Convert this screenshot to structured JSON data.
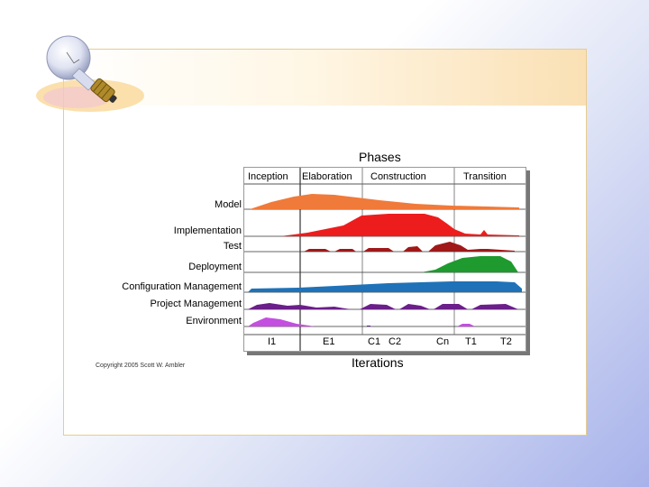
{
  "diagram": {
    "title": "Phases",
    "axis_title": "Iterations",
    "copyright": "Copyright 2005 Scott W. Ambler",
    "phases": [
      "Inception",
      "Elaboration",
      "Construction",
      "Transition"
    ],
    "disciplines": [
      "Model",
      "Implementation",
      "Test",
      "Deployment",
      "Configuration Management",
      "Project Management",
      "Environment"
    ],
    "iterations": [
      "I1",
      "E1",
      "C1",
      "C2",
      "Cn",
      "T1",
      "T2"
    ]
  },
  "colors": {
    "model": "#f07a3a",
    "implementation": "#ee1d1d",
    "test": "#a01818",
    "deployment": "#1f9a2e",
    "config": "#1f72b8",
    "project": "#6b1f8a",
    "environment": "#c44ee0",
    "frame_border": "#e8cc8c"
  },
  "icons": {
    "decoration": "light-bulb-icon"
  }
}
